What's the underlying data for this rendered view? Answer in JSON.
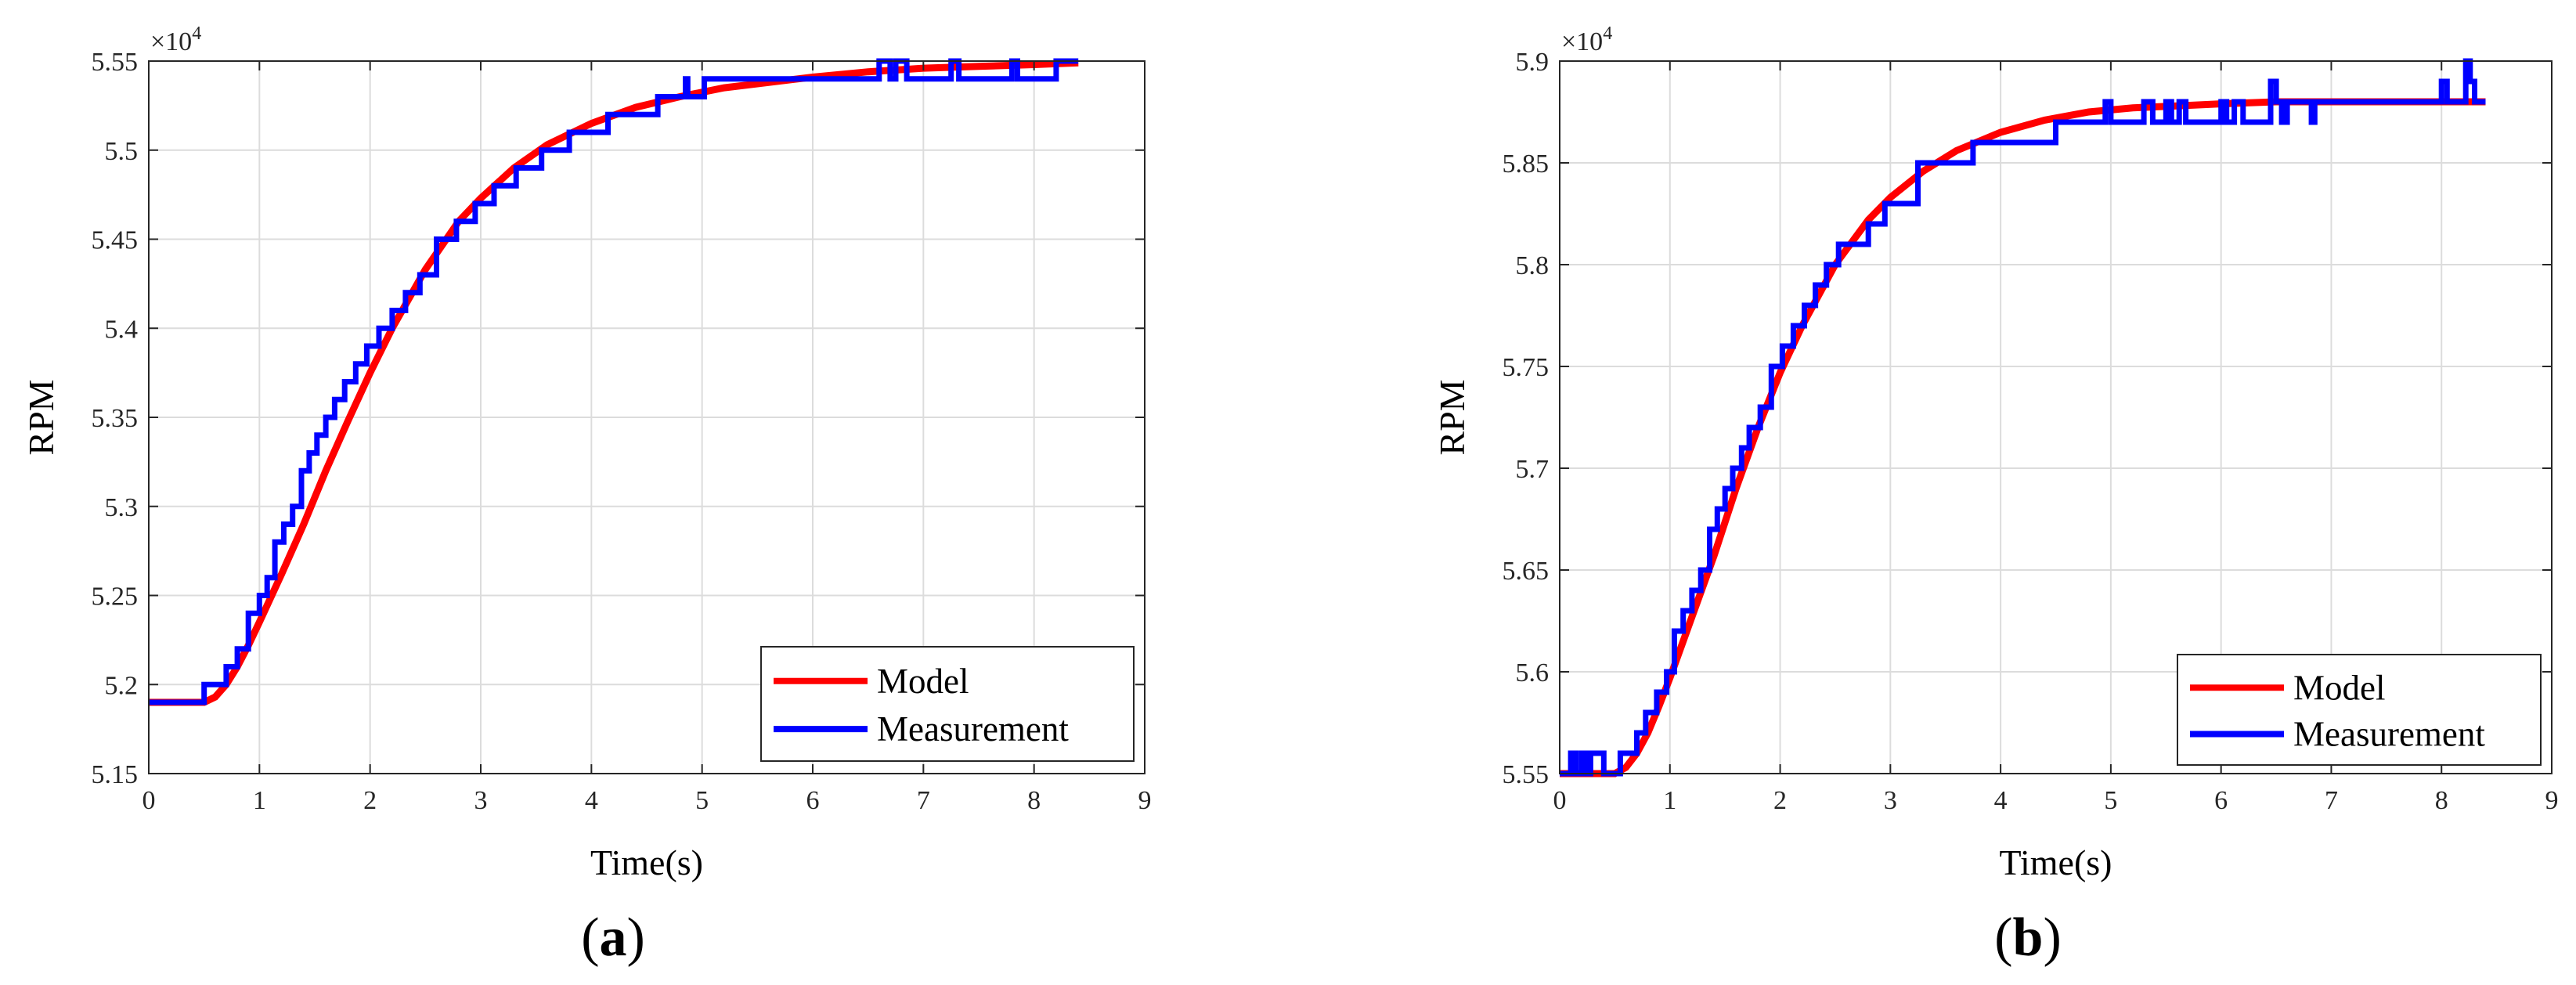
{
  "chart_data": [
    {
      "type": "line",
      "panel_label": "a",
      "xlabel": "Time(s)",
      "ylabel": "RPM",
      "y_exponent_label": "×10",
      "y_exponent_power": "4",
      "xlim": [
        0,
        9
      ],
      "ylim": [
        5.15,
        5.55
      ],
      "xticks": [
        0,
        1,
        2,
        3,
        4,
        5,
        6,
        7,
        8,
        9
      ],
      "yticks": [
        5.15,
        5.2,
        5.25,
        5.3,
        5.35,
        5.4,
        5.45,
        5.5,
        5.55
      ],
      "ytick_labels": [
        "5.15",
        "5.2",
        "5.25",
        "5.3",
        "5.35",
        "5.4",
        "5.45",
        "5.5",
        "5.55"
      ],
      "grid": true,
      "legend_position": "bottom-right",
      "series": [
        {
          "name": "Model",
          "color": "#ff0000",
          "x": [
            0,
            0.5,
            0.6,
            0.7,
            0.8,
            0.9,
            1.0,
            1.2,
            1.4,
            1.6,
            1.8,
            2.0,
            2.2,
            2.5,
            2.8,
            3.0,
            3.3,
            3.6,
            4.0,
            4.4,
            4.8,
            5.2,
            5.6,
            6.0,
            6.5,
            7.0,
            7.5,
            8.0,
            8.4
          ],
          "y": [
            5.19,
            5.19,
            5.193,
            5.2,
            5.21,
            5.222,
            5.235,
            5.262,
            5.29,
            5.32,
            5.348,
            5.375,
            5.4,
            5.433,
            5.46,
            5.473,
            5.49,
            5.503,
            5.515,
            5.524,
            5.53,
            5.535,
            5.538,
            5.541,
            5.544,
            5.546,
            5.547,
            5.548,
            5.549
          ]
        },
        {
          "name": "Measurement",
          "color": "#0000ff",
          "x": [
            0,
            0.5,
            0.5,
            0.6,
            0.6,
            0.7,
            0.7,
            0.8,
            0.8,
            0.9,
            0.9,
            1.0,
            1.0,
            1.07,
            1.07,
            1.14,
            1.14,
            1.22,
            1.22,
            1.3,
            1.3,
            1.38,
            1.38,
            1.45,
            1.45,
            1.52,
            1.52,
            1.6,
            1.6,
            1.68,
            1.68,
            1.77,
            1.77,
            1.87,
            1.87,
            1.97,
            1.97,
            2.08,
            2.08,
            2.2,
            2.2,
            2.32,
            2.32,
            2.45,
            2.45,
            2.6,
            2.6,
            2.78,
            2.78,
            2.95,
            2.95,
            3.12,
            3.12,
            3.32,
            3.32,
            3.55,
            3.55,
            3.8,
            3.8,
            4.15,
            4.15,
            4.45,
            4.45,
            4.6,
            4.6,
            4.7,
            4.7,
            4.85,
            4.85,
            4.87,
            4.87,
            5.02,
            5.02,
            5.2,
            5.2,
            5.25,
            5.25,
            5.3,
            5.3,
            6.6,
            6.6,
            6.7,
            6.7,
            6.75,
            6.75,
            6.85,
            6.85,
            7.25,
            7.25,
            7.32,
            7.32,
            7.8,
            7.8,
            7.85,
            7.85,
            8.2,
            8.2,
            8.25,
            8.25,
            8.4
          ],
          "y": [
            5.19,
            5.19,
            5.2,
            5.2,
            5.2,
            5.2,
            5.21,
            5.21,
            5.22,
            5.22,
            5.24,
            5.24,
            5.25,
            5.25,
            5.26,
            5.26,
            5.28,
            5.28,
            5.29,
            5.29,
            5.3,
            5.3,
            5.32,
            5.32,
            5.33,
            5.33,
            5.34,
            5.34,
            5.35,
            5.35,
            5.36,
            5.36,
            5.37,
            5.37,
            5.38,
            5.38,
            5.39,
            5.39,
            5.4,
            5.4,
            5.41,
            5.41,
            5.42,
            5.42,
            5.43,
            5.43,
            5.45,
            5.45,
            5.46,
            5.46,
            5.47,
            5.47,
            5.48,
            5.48,
            5.49,
            5.49,
            5.5,
            5.5,
            5.51,
            5.51,
            5.52,
            5.52,
            5.52,
            5.52,
            5.53,
            5.53,
            5.53,
            5.53,
            5.54,
            5.54,
            5.53,
            5.53,
            5.54,
            5.54,
            5.54,
            5.54,
            5.54,
            5.54,
            5.54,
            5.54,
            5.55,
            5.55,
            5.54,
            5.54,
            5.55,
            5.55,
            5.54,
            5.54,
            5.55,
            5.55,
            5.54,
            5.54,
            5.55,
            5.55,
            5.54,
            5.54,
            5.55,
            5.55,
            5.55,
            5.55
          ]
        }
      ]
    },
    {
      "type": "line",
      "panel_label": "b",
      "xlabel": "Time(s)",
      "ylabel": "RPM",
      "y_exponent_label": "×10",
      "y_exponent_power": "4",
      "xlim": [
        0,
        9
      ],
      "ylim": [
        5.55,
        5.9
      ],
      "xticks": [
        0,
        1,
        2,
        3,
        4,
        5,
        6,
        7,
        8,
        9
      ],
      "yticks": [
        5.55,
        5.6,
        5.65,
        5.7,
        5.75,
        5.8,
        5.85,
        5.9
      ],
      "ytick_labels": [
        "5.55",
        "5.6",
        "5.65",
        "5.7",
        "5.75",
        "5.8",
        "5.85",
        "5.9"
      ],
      "grid": true,
      "legend_position": "bottom-right",
      "series": [
        {
          "name": "Model",
          "color": "#ff0000",
          "x": [
            0,
            0.5,
            0.6,
            0.7,
            0.8,
            0.9,
            1.0,
            1.2,
            1.4,
            1.6,
            1.8,
            2.0,
            2.2,
            2.5,
            2.8,
            3.0,
            3.3,
            3.6,
            4.0,
            4.4,
            4.8,
            5.2,
            5.6,
            6.0,
            6.5,
            7.0,
            7.5,
            8.0,
            8.4
          ],
          "y": [
            5.55,
            5.55,
            5.553,
            5.56,
            5.57,
            5.583,
            5.597,
            5.627,
            5.657,
            5.69,
            5.72,
            5.747,
            5.77,
            5.8,
            5.822,
            5.833,
            5.846,
            5.856,
            5.865,
            5.871,
            5.875,
            5.877,
            5.878,
            5.879,
            5.88,
            5.88,
            5.88,
            5.88,
            5.88
          ]
        },
        {
          "name": "Measurement",
          "color": "#0000ff",
          "x": [
            0,
            0.1,
            0.1,
            0.15,
            0.15,
            0.2,
            0.2,
            0.25,
            0.25,
            0.28,
            0.28,
            0.4,
            0.4,
            0.42,
            0.42,
            0.55,
            0.55,
            0.62,
            0.62,
            0.7,
            0.7,
            0.78,
            0.78,
            0.88,
            0.88,
            0.97,
            0.97,
            1.04,
            1.04,
            1.12,
            1.12,
            1.2,
            1.2,
            1.28,
            1.28,
            1.36,
            1.36,
            1.43,
            1.43,
            1.5,
            1.5,
            1.57,
            1.57,
            1.65,
            1.65,
            1.72,
            1.72,
            1.82,
            1.82,
            1.92,
            1.92,
            2.02,
            2.02,
            2.12,
            2.12,
            2.22,
            2.22,
            2.32,
            2.32,
            2.42,
            2.42,
            2.53,
            2.53,
            2.65,
            2.65,
            2.8,
            2.8,
            2.95,
            2.95,
            3.1,
            3.1,
            3.25,
            3.25,
            3.45,
            3.45,
            3.75,
            3.75,
            4.5,
            4.5,
            4.55,
            4.55,
            4.95,
            4.95,
            5.0,
            5.0,
            5.3,
            5.3,
            5.38,
            5.38,
            5.5,
            5.5,
            5.55,
            5.55,
            5.62,
            5.62,
            5.68,
            5.68,
            5.75,
            5.75,
            6.0,
            6.0,
            6.05,
            6.05,
            6.12,
            6.12,
            6.2,
            6.2,
            6.25,
            6.25,
            6.45,
            6.45,
            6.5,
            6.5,
            6.55,
            6.55,
            6.6,
            6.6,
            6.82,
            6.82,
            6.85,
            6.85,
            8.0,
            8.0,
            8.05,
            8.05,
            8.22,
            8.22,
            8.26,
            8.26,
            8.3,
            8.3,
            8.4
          ],
          "y": [
            5.55,
            5.55,
            5.56,
            5.56,
            5.55,
            5.55,
            5.56,
            5.56,
            5.55,
            5.55,
            5.56,
            5.56,
            5.55,
            5.55,
            5.55,
            5.55,
            5.56,
            5.56,
            5.56,
            5.56,
            5.57,
            5.57,
            5.58,
            5.58,
            5.59,
            5.59,
            5.6,
            5.6,
            5.62,
            5.62,
            5.63,
            5.63,
            5.64,
            5.64,
            5.65,
            5.65,
            5.67,
            5.67,
            5.68,
            5.68,
            5.69,
            5.69,
            5.7,
            5.7,
            5.71,
            5.71,
            5.72,
            5.72,
            5.73,
            5.73,
            5.75,
            5.75,
            5.76,
            5.76,
            5.77,
            5.77,
            5.78,
            5.78,
            5.79,
            5.79,
            5.8,
            5.8,
            5.81,
            5.81,
            5.81,
            5.81,
            5.82,
            5.82,
            5.83,
            5.83,
            5.83,
            5.83,
            5.85,
            5.85,
            5.85,
            5.85,
            5.86,
            5.86,
            5.87,
            5.87,
            5.87,
            5.87,
            5.88,
            5.88,
            5.87,
            5.87,
            5.88,
            5.88,
            5.87,
            5.87,
            5.88,
            5.88,
            5.87,
            5.87,
            5.88,
            5.88,
            5.87,
            5.87,
            5.87,
            5.87,
            5.88,
            5.88,
            5.87,
            5.87,
            5.88,
            5.88,
            5.87,
            5.87,
            5.87,
            5.87,
            5.89,
            5.89,
            5.88,
            5.88,
            5.87,
            5.87,
            5.88,
            5.88,
            5.87,
            5.87,
            5.88,
            5.88,
            5.89,
            5.89,
            5.88,
            5.88,
            5.9,
            5.9,
            5.89,
            5.89,
            5.88,
            5.88
          ]
        }
      ]
    }
  ]
}
